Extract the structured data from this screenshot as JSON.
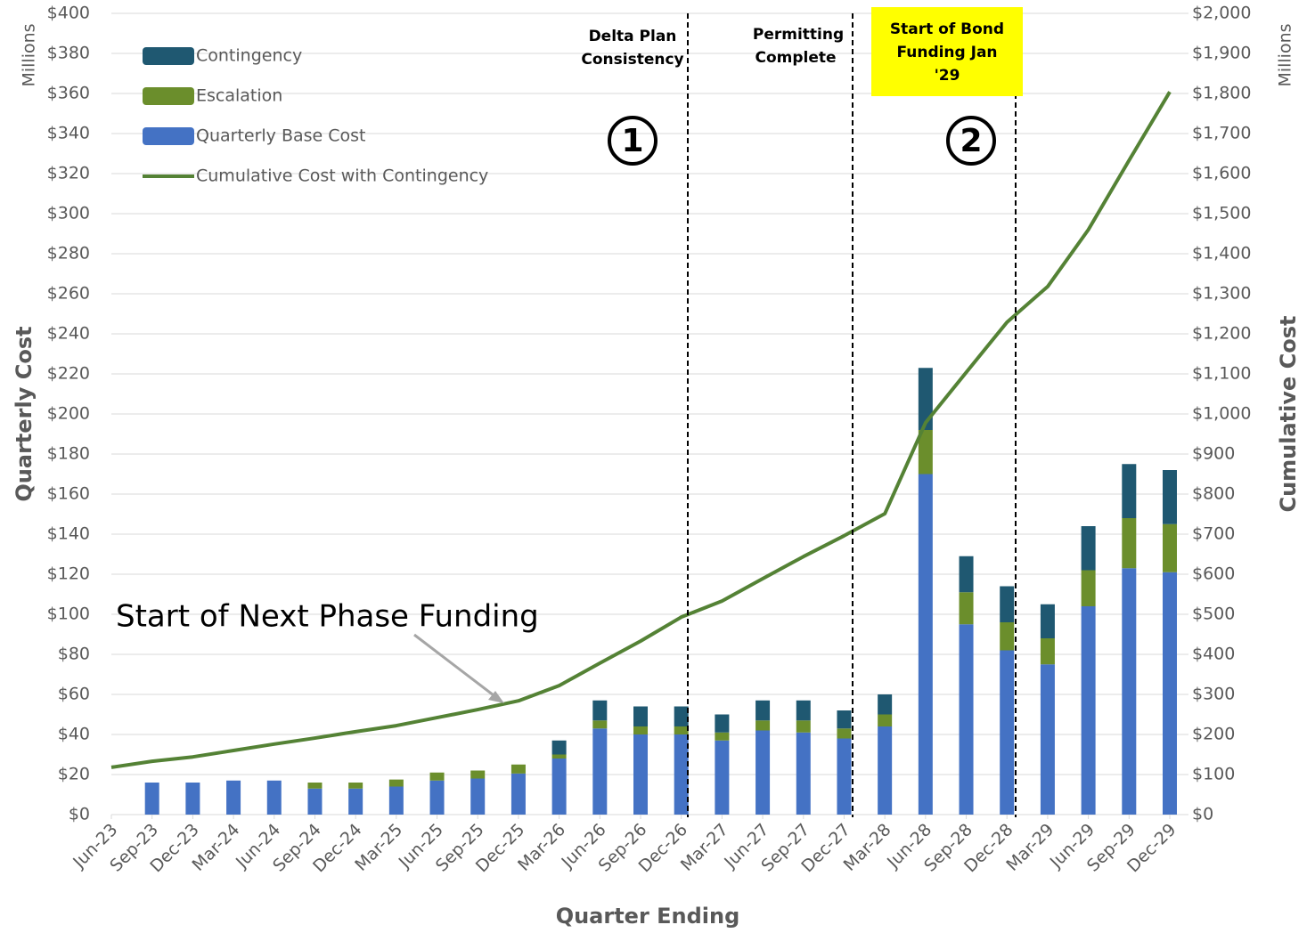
{
  "chart_data": {
    "type": "bar",
    "y_label": "Quarterly Cost",
    "y2_label": "Cumulative Cost",
    "x_label": "Quarter Ending",
    "y_unit": "Millions",
    "y2_unit": "Millions",
    "categories": [
      "Jun-23",
      "Sep-23",
      "Dec-23",
      "Mar-24",
      "Jun-24",
      "Sep-24",
      "Dec-24",
      "Mar-25",
      "Jun-25",
      "Sep-25",
      "Dec-25",
      "Mar-26",
      "Jun-26",
      "Sep-26",
      "Dec-26",
      "Mar-27",
      "Jun-27",
      "Sep-27",
      "Dec-27",
      "Mar-28",
      "Jun-28",
      "Sep-28",
      "Dec-28",
      "Mar-29",
      "Jun-29",
      "Sep-29",
      "Dec-29"
    ],
    "series": [
      {
        "name": "Quarterly Base Cost",
        "type": "bar",
        "axis": "y",
        "color": "#4472c4",
        "values": [
          0,
          16,
          16,
          17,
          17,
          13,
          13,
          14,
          17,
          18,
          20.5,
          28,
          43,
          40,
          40,
          37,
          42,
          41,
          38,
          44,
          170,
          95,
          82,
          75,
          104,
          123,
          121
        ]
      },
      {
        "name": "Escalation",
        "type": "bar",
        "axis": "y",
        "color": "#6b8e2c",
        "values": [
          0,
          0,
          0,
          0,
          0,
          3,
          3,
          3.5,
          4,
          4,
          4.5,
          2,
          4,
          4,
          4,
          4,
          5,
          6,
          5,
          6,
          22,
          16,
          14,
          13,
          18,
          25,
          24
        ]
      },
      {
        "name": "Contingency",
        "type": "bar",
        "axis": "y",
        "color": "#1f5871",
        "values": [
          0,
          0,
          0,
          0,
          0,
          0,
          0,
          0,
          0,
          0,
          0,
          7,
          10,
          10,
          10,
          9,
          10,
          10,
          9,
          10,
          31,
          18,
          18,
          17,
          22,
          27,
          27
        ]
      },
      {
        "name": "Cumulative Cost with Contingency",
        "type": "line",
        "axis": "y2",
        "color": "#548235",
        "values": [
          118,
          133,
          144,
          160,
          176,
          191,
          207,
          222,
          242,
          262,
          284,
          322,
          378,
          433,
          493,
          533,
          589,
          644,
          696,
          751,
          978,
          1104,
          1229,
          1318,
          1460,
          1633,
          1804
        ]
      }
    ],
    "legend_order": [
      2,
      1,
      0,
      3
    ],
    "ylim": [
      0,
      400
    ],
    "yticks": [
      {
        "value": 0,
        "label": "$0"
      },
      {
        "value": 20,
        "label": "$20"
      },
      {
        "value": 40,
        "label": "$40"
      },
      {
        "value": 60,
        "label": "$60"
      },
      {
        "value": 80,
        "label": "$80"
      },
      {
        "value": 100,
        "label": "$100"
      },
      {
        "value": 120,
        "label": "$120"
      },
      {
        "value": 140,
        "label": "$140"
      },
      {
        "value": 160,
        "label": "$160"
      },
      {
        "value": 180,
        "label": "$180"
      },
      {
        "value": 200,
        "label": "$200"
      },
      {
        "value": 220,
        "label": "$220"
      },
      {
        "value": 240,
        "label": "$240"
      },
      {
        "value": 260,
        "label": "$260"
      },
      {
        "value": 280,
        "label": "$280"
      },
      {
        "value": 300,
        "label": "$300"
      },
      {
        "value": 320,
        "label": "$320"
      },
      {
        "value": 340,
        "label": "$340"
      },
      {
        "value": 360,
        "label": "$360"
      },
      {
        "value": 380,
        "label": "$380"
      },
      {
        "value": 400,
        "label": "$400"
      }
    ],
    "y2lim": [
      0,
      2000
    ],
    "y2ticks": [
      {
        "value": 0,
        "label": "$0"
      },
      {
        "value": 100,
        "label": "$100"
      },
      {
        "value": 200,
        "label": "$200"
      },
      {
        "value": 300,
        "label": "$300"
      },
      {
        "value": 400,
        "label": "$400"
      },
      {
        "value": 500,
        "label": "$500"
      },
      {
        "value": 600,
        "label": "$600"
      },
      {
        "value": 700,
        "label": "$700"
      },
      {
        "value": 800,
        "label": "$800"
      },
      {
        "value": 900,
        "label": "$900"
      },
      {
        "value": 1000,
        "label": "$1,000"
      },
      {
        "value": 1100,
        "label": "$1,100"
      },
      {
        "value": 1200,
        "label": "$1,200"
      },
      {
        "value": 1300,
        "label": "$1,300"
      },
      {
        "value": 1400,
        "label": "$1,400"
      },
      {
        "value": 1500,
        "label": "$1,500"
      },
      {
        "value": 1600,
        "label": "$1,600"
      },
      {
        "value": 1700,
        "label": "$1,700"
      },
      {
        "value": 1800,
        "label": "$1,800"
      },
      {
        "value": 1900,
        "label": "$1,900"
      },
      {
        "value": 2000,
        "label": "$2,000"
      }
    ],
    "grid": true,
    "legend": "upper left",
    "annotations": [
      {
        "text": [
          "Delta Plan",
          "Consistency"
        ]
      },
      {
        "text": [
          "Permitting",
          "Complete"
        ]
      },
      {
        "text": [
          "Start of Bond",
          "Funding Jan",
          "'29"
        ]
      },
      {
        "text": [
          "1"
        ]
      },
      {
        "text": [
          "2"
        ]
      },
      {
        "text": [
          "Start of Next Phase Funding"
        ]
      }
    ]
  }
}
